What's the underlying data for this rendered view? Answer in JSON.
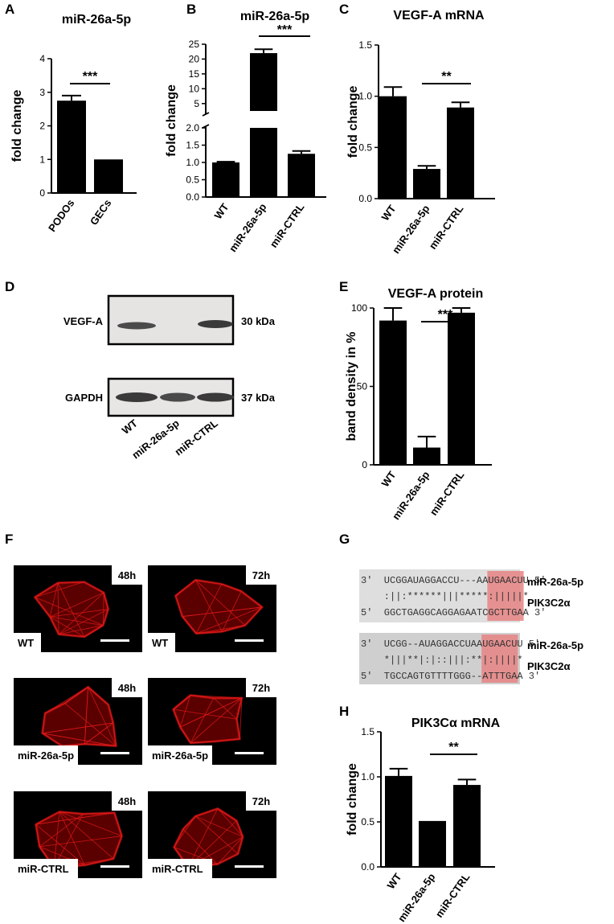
{
  "panels": {
    "A": {
      "letter": "A"
    },
    "B": {
      "letter": "B"
    },
    "C": {
      "letter": "C"
    },
    "D": {
      "letter": "D"
    },
    "E": {
      "letter": "E"
    },
    "F": {
      "letter": "F"
    },
    "G": {
      "letter": "G"
    },
    "H": {
      "letter": "H"
    }
  },
  "chart_data": [
    {
      "id": "A",
      "type": "bar",
      "title": "miR-26a-5p",
      "ylabel": "fold change",
      "xlabel": "",
      "categories": [
        "PODOs",
        "GECs"
      ],
      "values": [
        2.75,
        1.0
      ],
      "errors": [
        0.15,
        0.0
      ],
      "ylim": [
        0,
        4
      ],
      "yticks": [
        "0",
        "1",
        "2",
        "3",
        "4"
      ],
      "significance": [
        {
          "label": "***",
          "from": 0,
          "to": 1
        }
      ]
    },
    {
      "id": "B",
      "type": "bar",
      "title": "miR-26a-5p",
      "ylabel": "fold change",
      "xlabel": "",
      "categories": [
        "WT",
        "miR-26a-5p",
        "miR-CTRL"
      ],
      "values": [
        1.0,
        22.0,
        1.25
      ],
      "errors": [
        0.02,
        1.3,
        0.08
      ],
      "ylim": [
        0,
        25
      ],
      "axis_break": [
        2.0,
        2.5
      ],
      "yticks_lower": [
        "0.0",
        "0.5",
        "1.0",
        "1.5",
        "2.0"
      ],
      "yticks_upper": [
        "5",
        "10",
        "15",
        "20",
        "25"
      ],
      "significance": [
        {
          "label": "***",
          "from": 1,
          "to": 2
        }
      ]
    },
    {
      "id": "C",
      "type": "bar",
      "title": "VEGF-A mRNA",
      "ylabel": "fold change",
      "xlabel": "",
      "categories": [
        "WT",
        "miR-26a-5p",
        "miR-CTRL"
      ],
      "values": [
        1.0,
        0.29,
        0.89
      ],
      "errors": [
        0.09,
        0.03,
        0.05
      ],
      "ylim": [
        0,
        1.5
      ],
      "yticks": [
        "0.0",
        "0.5",
        "1.0",
        "1.5"
      ],
      "significance": [
        {
          "label": "**",
          "from": 1,
          "to": 2
        }
      ]
    },
    {
      "id": "E",
      "type": "bar",
      "title": "VEGF-A protein",
      "ylabel": "band density in %",
      "xlabel": "",
      "categories": [
        "WT",
        "miR-26a-5p",
        "miR-CTRL"
      ],
      "values": [
        92,
        11,
        97
      ],
      "errors": [
        8,
        7,
        3
      ],
      "ylim": [
        0,
        100
      ],
      "yticks": [
        "0",
        "50",
        "100"
      ],
      "significance": [
        {
          "label": "***",
          "from": 1,
          "to": 2
        }
      ]
    },
    {
      "id": "H",
      "type": "bar",
      "title": "PIK3Cα mRNA",
      "ylabel": "fold change",
      "xlabel": "",
      "categories": [
        "WT",
        "miR-26a-5p",
        "miR-CTRL"
      ],
      "values": [
        1.01,
        0.51,
        0.91
      ],
      "errors": [
        0.08,
        0.0,
        0.06
      ],
      "ylim": [
        0,
        1.5
      ],
      "yticks": [
        "0.0",
        "0.5",
        "1.0",
        "1.5"
      ],
      "significance": [
        {
          "label": "**",
          "from": 1,
          "to": 2
        }
      ]
    }
  ],
  "blot": {
    "rows": [
      {
        "protein": "VEGF-A",
        "size": "30 kDa"
      },
      {
        "protein": "GAPDH",
        "size": "37 kDa"
      }
    ],
    "lanes": [
      "WT",
      "miR-26a-5p",
      "miR-CTRL"
    ]
  },
  "micrographs": {
    "tiles": [
      {
        "time": "48h",
        "label": "WT"
      },
      {
        "time": "72h",
        "label": "WT"
      },
      {
        "time": "48h",
        "label": "miR-26a-5p"
      },
      {
        "time": "72h",
        "label": "miR-26a-5p"
      },
      {
        "time": "48h",
        "label": "miR-CTRL"
      },
      {
        "time": "72h",
        "label": "miR-CTRL"
      }
    ],
    "stain_color": "#e01818"
  },
  "alignments": [
    {
      "line1_prefix": "3'  UCGGAUAGGACCU---AA",
      "line1_seed": "UGAACU",
      "line1_suffix": "U 5'",
      "line2_prefix": "    :||:******|||*****",
      "line2_seed": ":|||||",
      "line2_suffix": "*",
      "line3_prefix": "5'  GGCTGAGGCAGGAGAATC",
      "line3_seed": "GCTTGA",
      "line3_suffix": "A 3'",
      "mirna": "miR-26a-5p",
      "target": "PIK3C2α"
    },
    {
      "line1_prefix": "3'  UCGG--AUAGGACCUAA",
      "line1_seed": "UGAACU",
      "line1_suffix": "U 5'",
      "line2_prefix": "    *|||**|:|::|||:**",
      "line2_seed": "|:||||",
      "line2_suffix": "*",
      "line3_prefix": "5'  TGCCAGTGTTTTGGG--",
      "line3_seed": "ATTTGA",
      "line3_suffix": "A 3'",
      "mirna": "miR-26a-5p",
      "target": "PIK3C2α"
    }
  ],
  "colors": {
    "bar": "#000000",
    "seed_highlight": "#e88484",
    "alignment_bg": "#dcdcdc"
  }
}
